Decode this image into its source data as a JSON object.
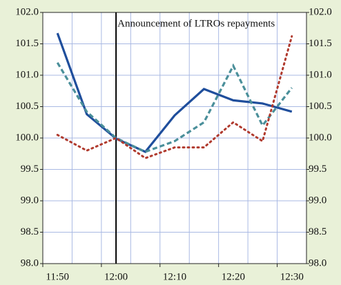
{
  "chart_data": {
    "type": "line",
    "categories": [
      "11:50",
      null,
      "12:00",
      null,
      "12:10",
      null,
      "12:20",
      null,
      "12:30"
    ],
    "series": [
      {
        "color": "#1f4e9c",
        "style": "solid",
        "values": [
          101.67,
          100.38,
          99.99,
          99.78,
          100.36,
          100.78,
          100.6,
          100.55,
          100.42
        ]
      },
      {
        "color": "#4a8f9a",
        "style": "dashed",
        "values": [
          101.2,
          100.42,
          100.0,
          99.78,
          99.95,
          100.25,
          101.15,
          100.2,
          100.8
        ]
      },
      {
        "color": "#b03a2e",
        "style": "dotted",
        "values": [
          100.05,
          99.8,
          100.0,
          99.68,
          99.85,
          99.85,
          100.25,
          99.95,
          101.62
        ]
      }
    ],
    "ylim": [
      98,
      102
    ],
    "yticks": [
      {
        "value": 98,
        "label": "98.0"
      },
      {
        "value": 98.5,
        "label": "98.5"
      },
      {
        "value": 99,
        "label": "99.0"
      },
      {
        "value": 99.5,
        "label": "99.5"
      },
      {
        "value": 100,
        "label": "100.0"
      },
      {
        "value": 100.5,
        "label": "100.5"
      },
      {
        "value": 101,
        "label": "101.0"
      },
      {
        "value": 101.5,
        "label": "101.5"
      },
      {
        "value": 102,
        "label": "102.0"
      }
    ],
    "y2lim": [
      98,
      102
    ],
    "y2ticks": [
      {
        "value": 98,
        "label": "98.0"
      },
      {
        "value": 98.5,
        "label": "98.5"
      },
      {
        "value": 99,
        "label": "99.0"
      },
      {
        "value": 99.5,
        "label": "99.5"
      },
      {
        "value": 100,
        "label": "100.0"
      },
      {
        "value": 100.5,
        "label": "100.5"
      },
      {
        "value": 101,
        "label": "101.0"
      },
      {
        "value": 101.5,
        "label": "101.5"
      },
      {
        "value": 102,
        "label": "102.0"
      }
    ],
    "grid": true,
    "annotation": {
      "text": "Announcement of LTROs repayments",
      "at": "12:00"
    }
  }
}
